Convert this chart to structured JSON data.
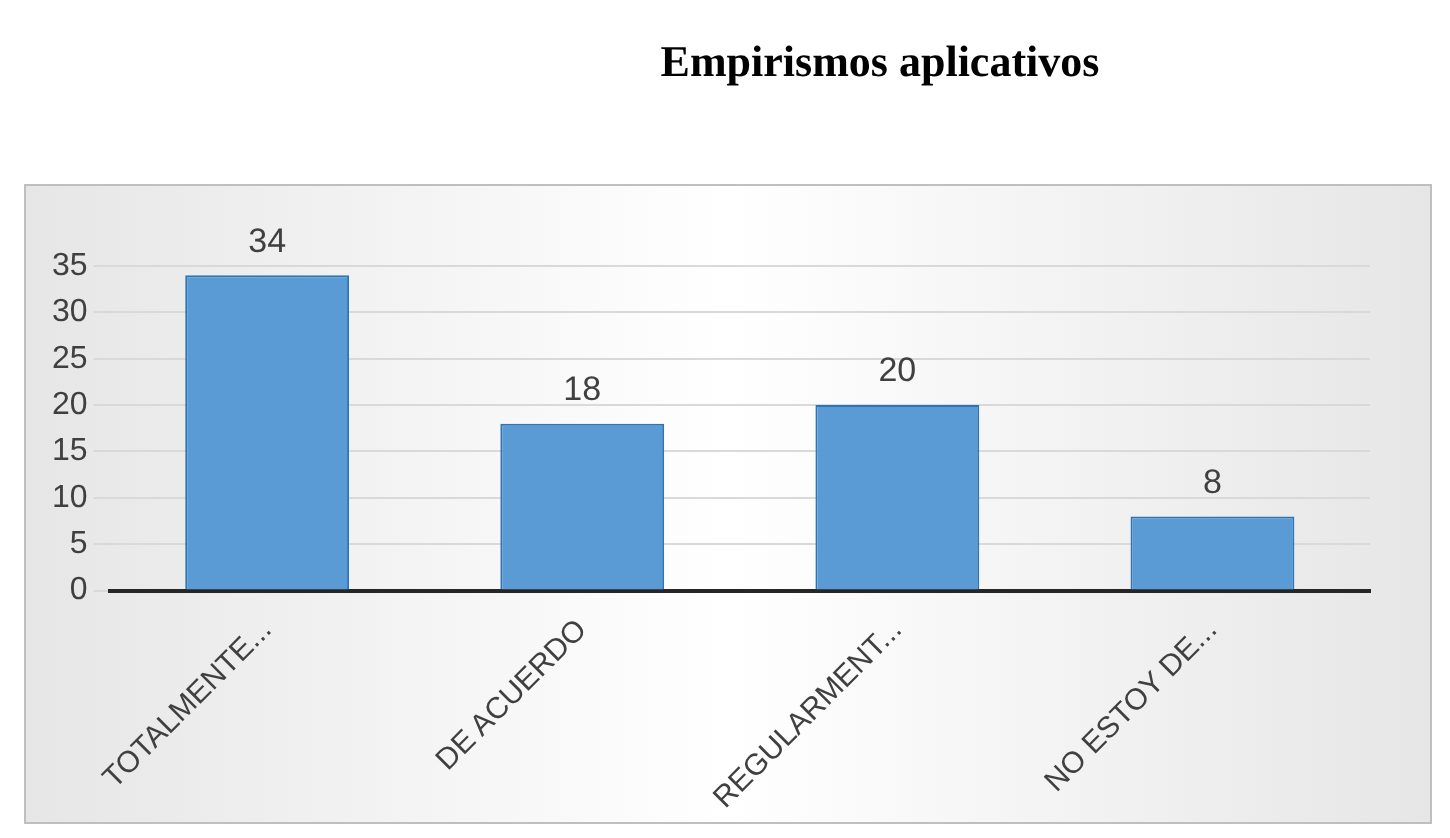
{
  "chart_data": {
    "type": "bar",
    "title": "Empirismos aplicativos",
    "categories": [
      "TOTALMENTE...",
      "DE ACUERDO",
      "REGULARMENT...",
      "NO ESTOY DE..."
    ],
    "values": [
      34,
      18,
      20,
      8
    ],
    "color": "#5b9bd5",
    "ylim": [
      0,
      35
    ],
    "yticks": [
      0,
      5,
      10,
      15,
      20,
      25,
      30,
      35
    ],
    "grid": true,
    "data_labels": true
  }
}
